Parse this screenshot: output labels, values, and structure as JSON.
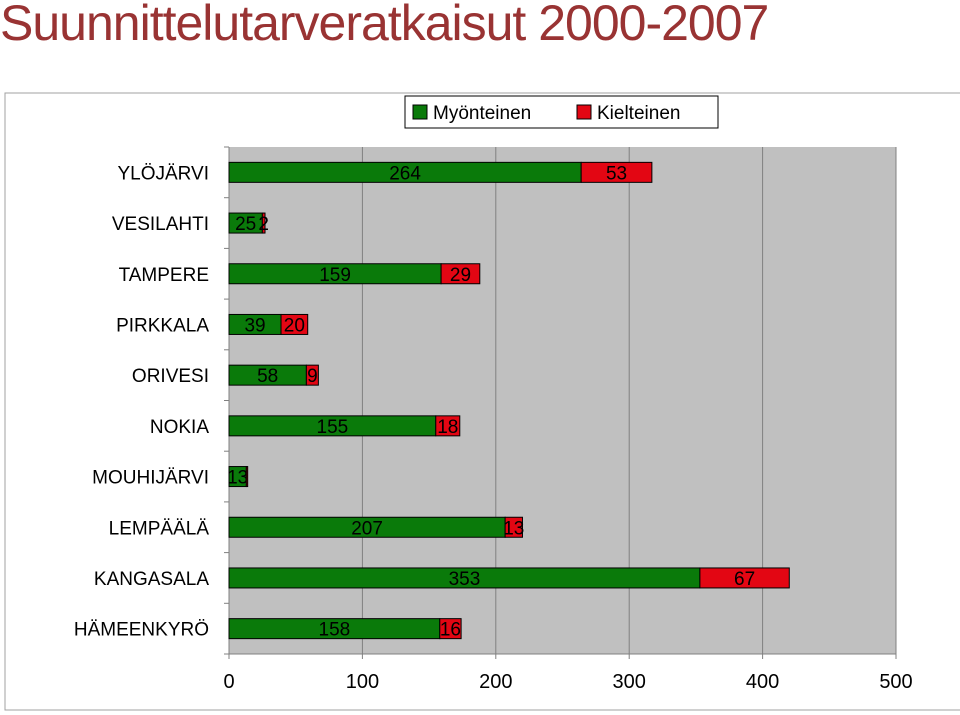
{
  "page": {
    "title": "Suunnittelutarveratkaisut 2000-2007"
  },
  "colors": {
    "title": "#993333",
    "positive": "#0a7a0a",
    "negative": "#e30613",
    "plot_background": "#c0c0c0"
  },
  "chart_data": {
    "type": "bar",
    "orientation": "horizontal",
    "stacked": true,
    "categories": [
      "YLÖJÄRVI",
      "VESILAHTI",
      "TAMPERE",
      "PIRKKALA",
      "ORIVESI",
      "NOKIA",
      "MOUHIJÄRVI",
      "LEMPÄÄLÄ",
      "KANGASALA",
      "HÄMEENKYRÖ"
    ],
    "series": [
      {
        "name": "Myönteinen",
        "color": "#0a7a0a",
        "values": [
          264,
          25,
          159,
          39,
          58,
          155,
          13,
          207,
          353,
          158
        ]
      },
      {
        "name": "Kielteinen",
        "color": "#e30613",
        "values": [
          53,
          2,
          29,
          20,
          9,
          18,
          1,
          13,
          67,
          16
        ]
      }
    ],
    "data_labels": [
      [
        "264",
        "25",
        "159",
        "39",
        "58",
        "155",
        "13",
        "207",
        "353",
        "158"
      ],
      [
        "53",
        "2",
        "29",
        "20",
        "9",
        "18",
        "",
        "13",
        "67",
        "16"
      ]
    ],
    "xlim": [
      0,
      500
    ],
    "xticks": [
      "0",
      "100",
      "200",
      "300",
      "400",
      "500"
    ],
    "grid": true,
    "legend_position": "top-right"
  }
}
